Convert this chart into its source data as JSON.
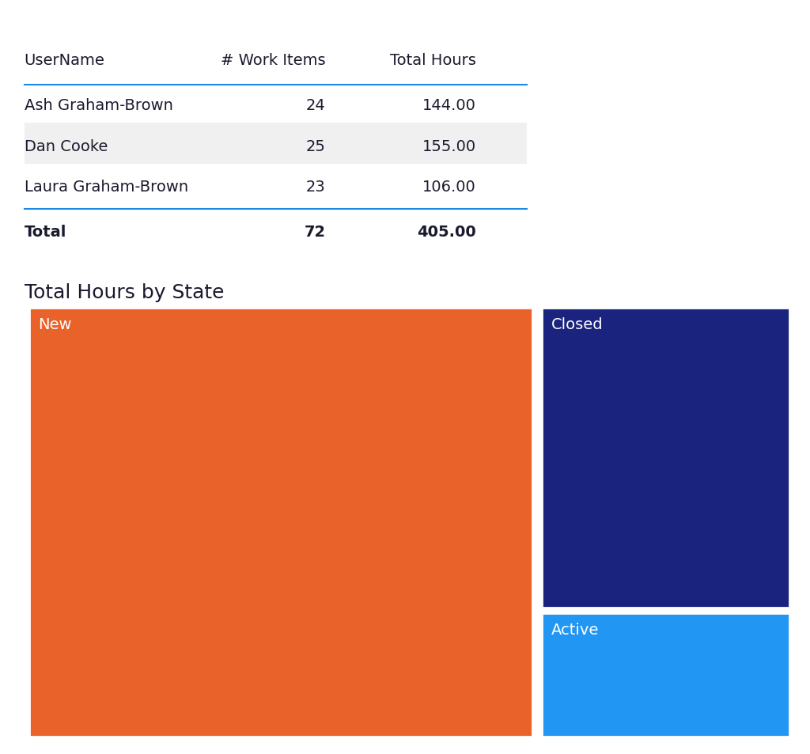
{
  "table": {
    "headers": [
      "UserName",
      "# Work Items",
      "Total Hours"
    ],
    "rows": [
      [
        "Ash Graham-Brown",
        "24",
        "144.00"
      ],
      [
        "Dan Cooke",
        "25",
        "155.00"
      ],
      [
        "Laura Graham-Brown",
        "23",
        "106.00"
      ]
    ],
    "total_row": [
      "Total",
      "72",
      "405.00"
    ],
    "row_bg_colors": [
      "#ffffff",
      "#f0f0f0",
      "#ffffff"
    ],
    "header_line_color": "#1e88e5",
    "total_line_color": "#1e88e5",
    "text_color": "#1a1a2e",
    "bold_color": "#1a1a2e"
  },
  "treemap_title": "Total Hours by State",
  "treemap_title_fontsize": 18,
  "treemap": {
    "states": [
      "New",
      "Closed",
      "Active"
    ],
    "values": [
      270,
      95,
      40
    ],
    "colors": [
      "#e8622a",
      "#1a237e",
      "#2196f3"
    ],
    "label_color": "#ffffff",
    "label_fontsize": 14
  },
  "bg_color": "#ffffff",
  "table_fontsize": 14,
  "header_fontsize": 14
}
